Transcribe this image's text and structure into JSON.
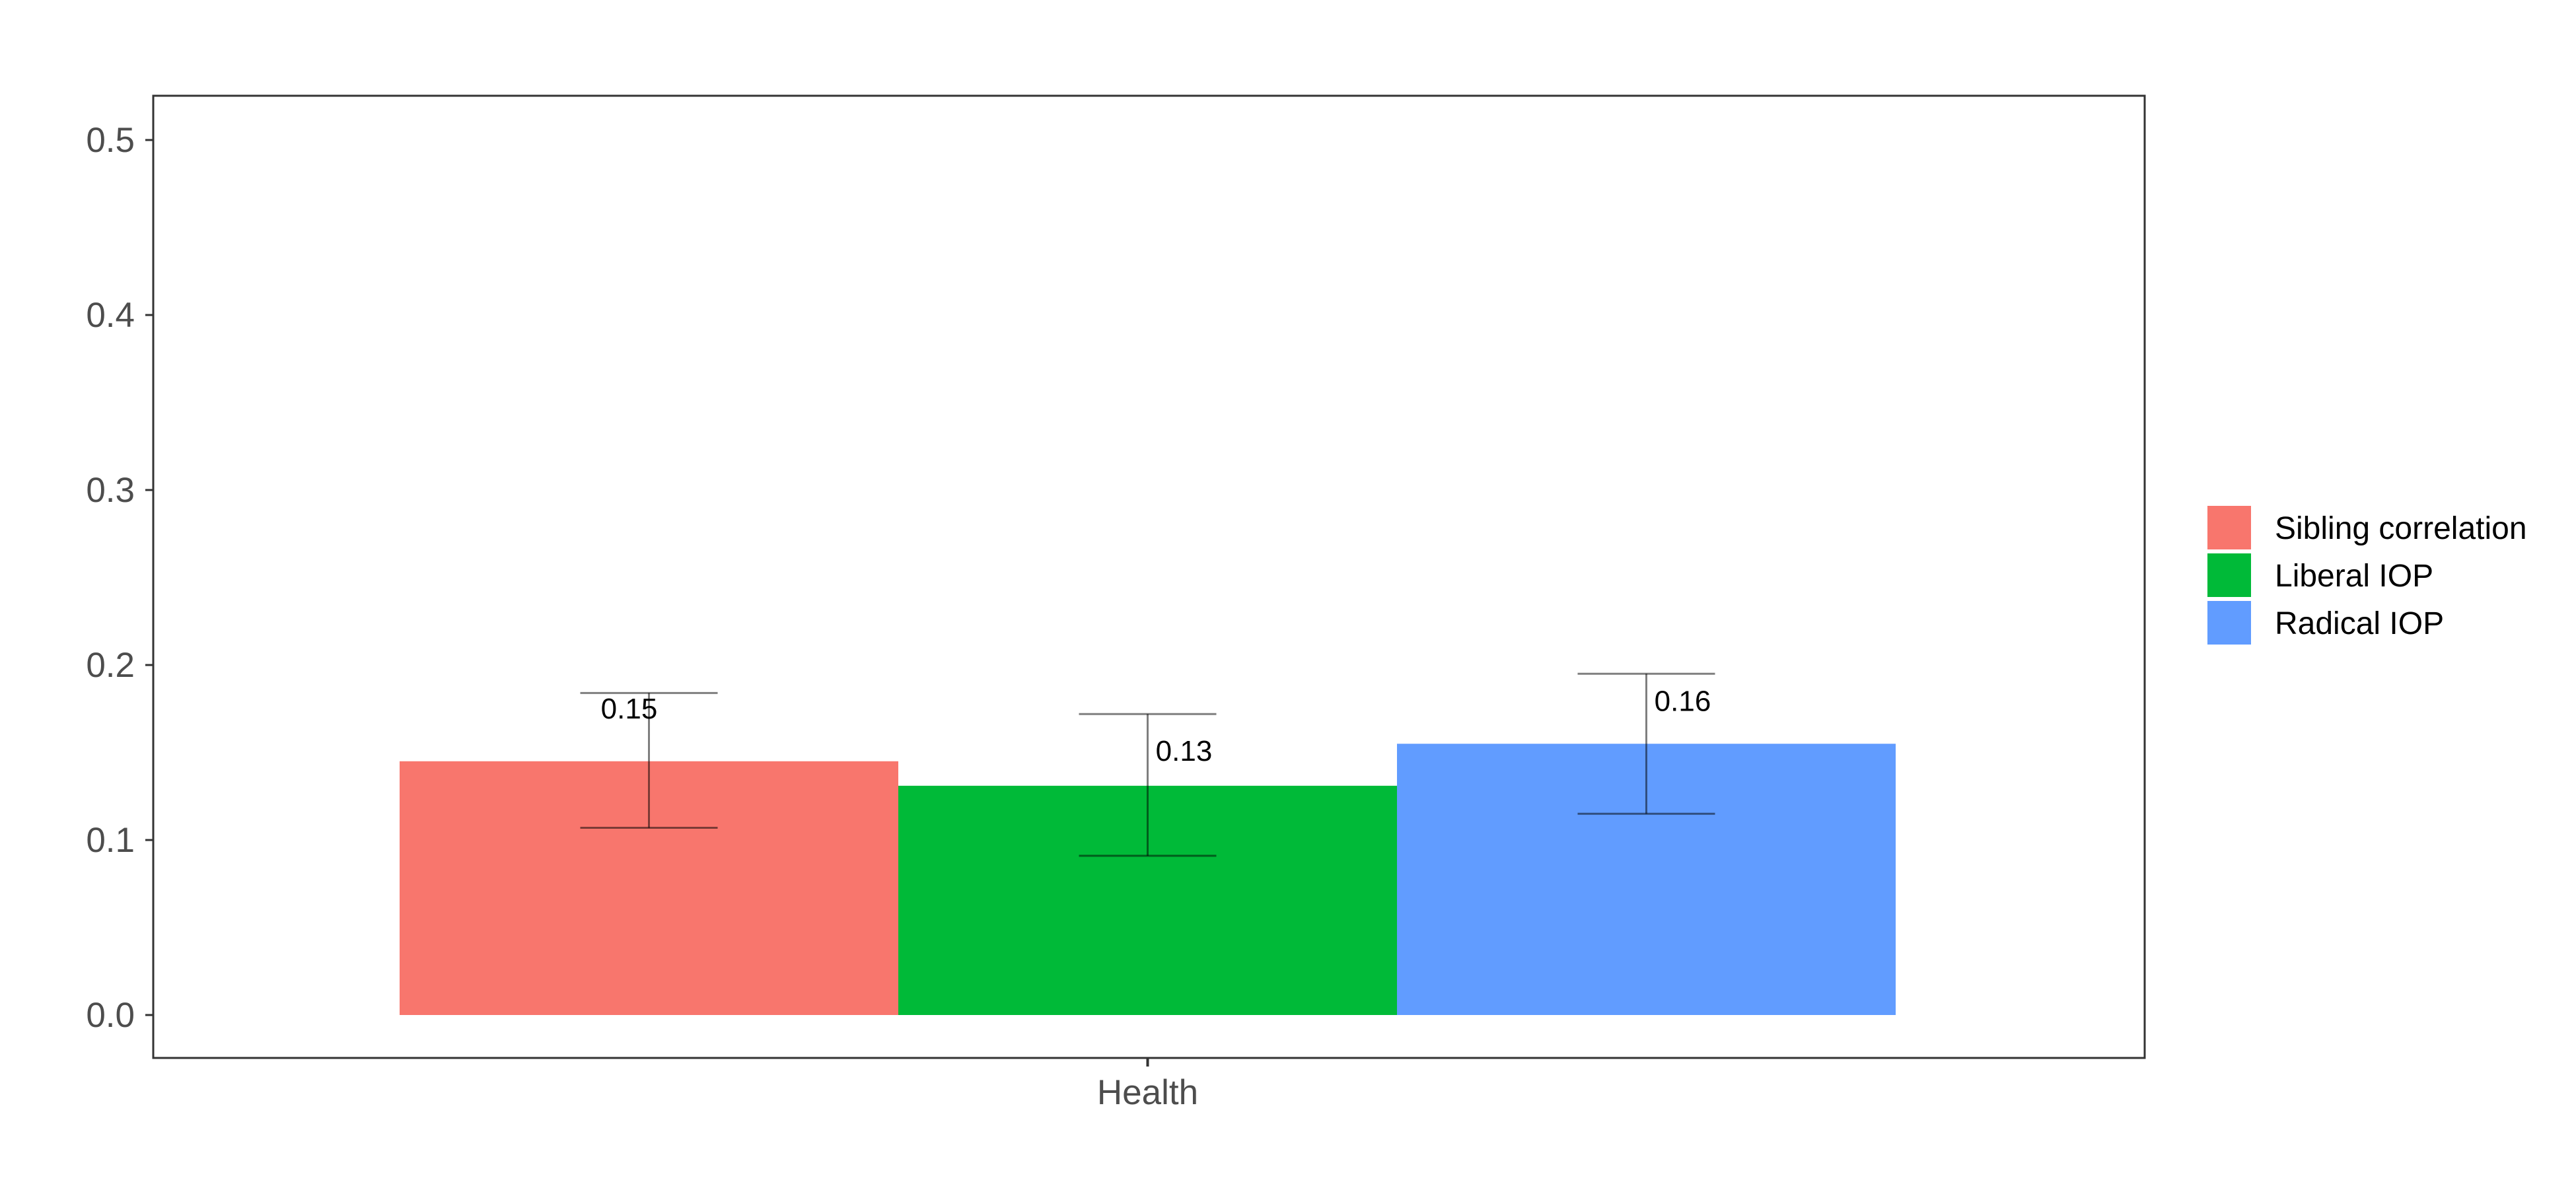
{
  "chart_data": {
    "type": "bar",
    "title": "",
    "xlabel": "",
    "ylabel": "",
    "categories": [
      "Health"
    ],
    "ylim": [
      0,
      0.5
    ],
    "yticks": [
      0.0,
      0.1,
      0.2,
      0.3,
      0.4,
      0.5
    ],
    "ytick_labels": [
      "0.0",
      "0.1",
      "0.2",
      "0.3",
      "0.4",
      "0.5"
    ],
    "grid": false,
    "legend_position": "right",
    "series": [
      {
        "name": "Sibling correlation",
        "color": "#F8766D",
        "values": [
          0.145
        ],
        "error_low": [
          0.107
        ],
        "error_high": [
          0.184
        ],
        "label": "0.15"
      },
      {
        "name": "Liberal IOP",
        "color": "#00BA38",
        "values": [
          0.131
        ],
        "error_low": [
          0.091
        ],
        "error_high": [
          0.172
        ],
        "label": "0.13"
      },
      {
        "name": "Radical IOP",
        "color": "#619CFF",
        "values": [
          0.155
        ],
        "error_low": [
          0.115
        ],
        "error_high": [
          0.195
        ],
        "label": "0.16"
      }
    ]
  }
}
